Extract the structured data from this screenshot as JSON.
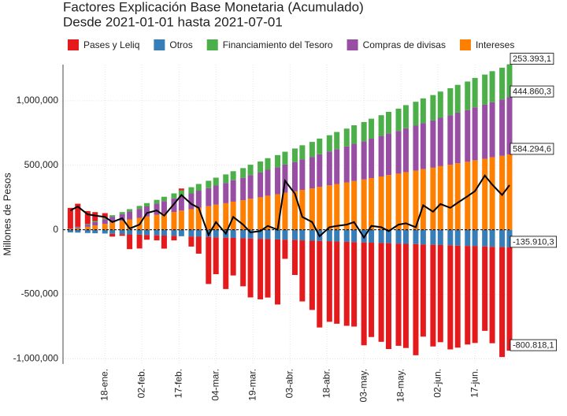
{
  "chart_data": {
    "type": "bar",
    "title": "Factores Explicación Base Monetaria (Acumulado)",
    "subtitle": "Desde 2021-01-01 hasta 2021-07-01",
    "ylabel": "Millones de Pesos",
    "stacked": true,
    "grid": true,
    "legend": "top",
    "x": [
      "2021-01-04",
      "2021-01-07",
      "2021-01-11",
      "2021-01-14",
      "2021-01-18",
      "2021-01-21",
      "2021-01-25",
      "2021-01-28",
      "2021-02-01",
      "2021-02-04",
      "2021-02-08",
      "2021-02-11",
      "2021-02-15",
      "2021-02-18",
      "2021-02-22",
      "2021-02-25",
      "2021-03-01",
      "2021-03-04",
      "2021-03-08",
      "2021-03-11",
      "2021-03-15",
      "2021-03-18",
      "2021-03-22",
      "2021-03-25",
      "2021-03-29",
      "2021-04-01",
      "2021-04-05",
      "2021-04-08",
      "2021-04-12",
      "2021-04-15",
      "2021-04-19",
      "2021-04-22",
      "2021-04-26",
      "2021-04-29",
      "2021-05-03",
      "2021-05-06",
      "2021-05-10",
      "2021-05-13",
      "2021-05-17",
      "2021-05-20",
      "2021-05-24",
      "2021-05-27",
      "2021-05-31",
      "2021-06-03",
      "2021-06-07",
      "2021-06-10",
      "2021-06-14",
      "2021-06-17",
      "2021-06-21",
      "2021-06-24",
      "2021-06-28",
      "2021-07-01"
    ],
    "xlim": [
      "2021-01-01",
      "2021-07-01"
    ],
    "xticks": [
      {
        "value": "2021-01-18",
        "label": "18-ene."
      },
      {
        "value": "2021-02-02",
        "label": "02-feb."
      },
      {
        "value": "2021-02-17",
        "label": "17-feb."
      },
      {
        "value": "2021-03-04",
        "label": "04-mar."
      },
      {
        "value": "2021-03-19",
        "label": "19-mar."
      },
      {
        "value": "2021-04-03",
        "label": "03-abr."
      },
      {
        "value": "2021-04-18",
        "label": "18-abr."
      },
      {
        "value": "2021-05-03",
        "label": "03-may."
      },
      {
        "value": "2021-05-18",
        "label": "18-may."
      },
      {
        "value": "2021-06-02",
        "label": "02-jun."
      },
      {
        "value": "2021-06-17",
        "label": "17-jun."
      }
    ],
    "ylim": [
      -1040000,
      1280000
    ],
    "yticks": [
      {
        "value": -1000000,
        "label": "-1,000,000"
      },
      {
        "value": -500000,
        "label": "-500,000"
      },
      0,
      {
        "value": 500000,
        "label": "500,000"
      },
      {
        "value": 1000000,
        "label": "1,000,000"
      }
    ],
    "series": [
      {
        "name": "Pases y Leliq",
        "color": "#e41a1c",
        "end_label": "-800.818,1",
        "values": [
          162000,
          179000,
          100000,
          69000,
          38000,
          -22000,
          -13000,
          -114000,
          -107000,
          -36000,
          -39000,
          -101000,
          -35000,
          15000,
          -78000,
          -131000,
          -364000,
          -285000,
          -398000,
          -291000,
          -372000,
          -456000,
          -469000,
          -453000,
          -504000,
          -148000,
          -271000,
          -473000,
          -537000,
          -671000,
          -625000,
          -637000,
          -651000,
          -655000,
          -797000,
          -731000,
          -766000,
          -820000,
          -792000,
          -807000,
          -861000,
          -714000,
          -788000,
          -753000,
          -807000,
          -790000,
          -764000,
          -750000,
          -654000,
          -747000,
          -852000,
          -800818.1
        ]
      },
      {
        "name": "Otros",
        "color": "#377eb8",
        "end_label": "-135.910,3",
        "values": [
          -20000,
          -22000,
          -25000,
          -27000,
          -29000,
          -31000,
          -34000,
          -36000,
          -38000,
          -41000,
          -43000,
          -45000,
          -47000,
          -50000,
          -52000,
          -54000,
          -56000,
          -59000,
          -61000,
          -63000,
          -66000,
          -68000,
          -70000,
          -72000,
          -75000,
          -77000,
          -79000,
          -82000,
          -84000,
          -86000,
          -88000,
          -91000,
          -93000,
          -95000,
          -98000,
          -100000,
          -102000,
          -104000,
          -107000,
          -109000,
          -111000,
          -114000,
          -116000,
          -118000,
          -120000,
          -123000,
          -125000,
          -127000,
          -129000,
          -132000,
          -134000,
          -135910.3
        ]
      },
      {
        "name": "Financiamiento del Tesoro",
        "color": "#4daf4a",
        "end_label": "253.393,1",
        "values": [
          1000,
          3000,
          5000,
          8000,
          10000,
          12000,
          16000,
          19000,
          23000,
          26000,
          30000,
          34000,
          39000,
          43000,
          48000,
          52000,
          57000,
          61000,
          66000,
          70000,
          75000,
          80000,
          85000,
          90000,
          95000,
          100000,
          105000,
          111000,
          116000,
          122000,
          127000,
          133000,
          138000,
          144000,
          149000,
          155000,
          161000,
          167000,
          173000,
          179000,
          185000,
          191000,
          197000,
          203000,
          209000,
          215000,
          221000,
          228000,
          234000,
          240000,
          247000,
          253393.1
        ]
      },
      {
        "name": "Compras de divisas",
        "color": "#984ea3",
        "end_label": "444.860,3",
        "values": [
          2000,
          9000,
          17000,
          26000,
          35000,
          44000,
          52000,
          61000,
          70000,
          78000,
          87000,
          96000,
          105000,
          113000,
          122000,
          131000,
          140000,
          148000,
          157000,
          166000,
          174000,
          183000,
          192000,
          201000,
          209000,
          218000,
          227000,
          235000,
          244000,
          253000,
          262000,
          270000,
          279000,
          288000,
          296000,
          305000,
          314000,
          323000,
          331000,
          340000,
          349000,
          357000,
          366000,
          375000,
          384000,
          392000,
          401000,
          410000,
          419000,
          427000,
          436000,
          444860.3
        ]
      },
      {
        "name": "Intereses",
        "color": "#ff7f00",
        "end_label": "584.294,6",
        "values": [
          5000,
          11000,
          23000,
          34000,
          46000,
          57000,
          69000,
          80000,
          92000,
          103000,
          115000,
          126000,
          138000,
          149000,
          160000,
          172000,
          183000,
          195000,
          206000,
          218000,
          229000,
          241000,
          252000,
          264000,
          275000,
          287000,
          298000,
          309000,
          321000,
          332000,
          344000,
          355000,
          367000,
          378000,
          390000,
          401000,
          413000,
          424000,
          435000,
          447000,
          458000,
          470000,
          481000,
          493000,
          504000,
          516000,
          527000,
          539000,
          550000,
          562000,
          573000,
          584294.6
        ]
      }
    ],
    "line": {
      "color": "#000000",
      "values": [
        150000,
        180000,
        120000,
        110000,
        100000,
        60000,
        90000,
        10000,
        40000,
        130000,
        150000,
        110000,
        200000,
        270000,
        200000,
        170000,
        -40000,
        60000,
        -30000,
        100000,
        40000,
        -20000,
        -10000,
        30000,
        0,
        380000,
        280000,
        100000,
        60000,
        -50000,
        20000,
        30000,
        40000,
        60000,
        -60000,
        30000,
        20000,
        -10000,
        40000,
        50000,
        20000,
        190000,
        140000,
        200000,
        170000,
        210000,
        260000,
        300000,
        420000,
        350000,
        270000,
        345819.6
      ]
    }
  }
}
